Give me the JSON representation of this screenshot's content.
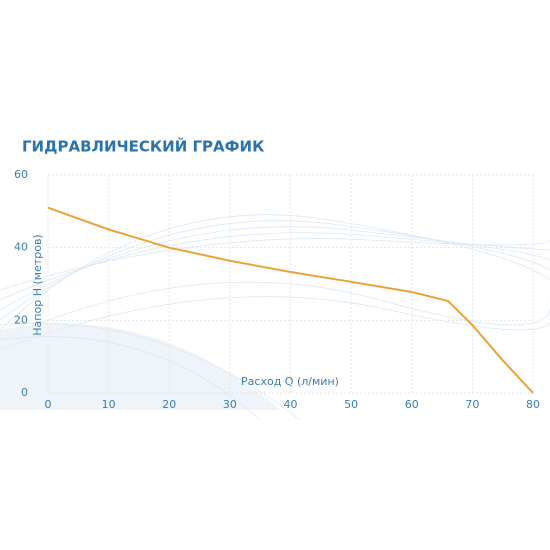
{
  "chart_data": {
    "type": "line",
    "title": "ГИДРАВЛИЧЕСКИЙ ГРАФИК",
    "x_label": "Расход Q (л/мин)",
    "y_label": "Напор Н (метров)",
    "x": [
      0,
      10,
      20,
      30,
      40,
      50,
      60,
      66,
      70,
      75,
      80
    ],
    "series": [
      {
        "name": "Напор",
        "color": "#eba23a",
        "values": [
          51,
          45,
          40,
          36.4,
          33.3,
          30.6,
          27.8,
          25.3,
          18.7,
          9,
          0
        ]
      }
    ],
    "xlim": [
      0,
      80
    ],
    "xticks": [
      0,
      10,
      20,
      30,
      40,
      50,
      60,
      70,
      80
    ],
    "ylim": [
      0,
      60
    ],
    "yticks": [
      0,
      20,
      40,
      60
    ],
    "grid": true
  }
}
